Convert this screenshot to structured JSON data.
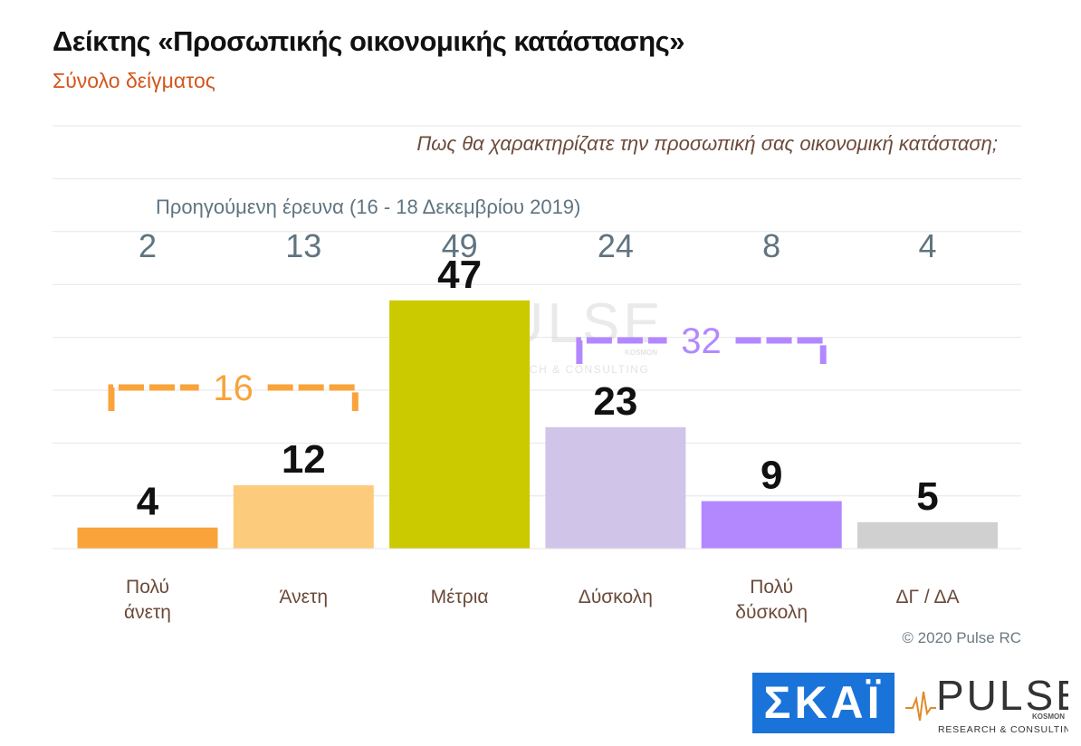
{
  "header": {
    "title": "Δείκτης «Προσωπικής οικονομικής κατάστασης»",
    "subtitle": "Σύνολο δείγματος",
    "question": "Πως θα χαρακτηρίζατε την προσωπική σας οικονομική κατάσταση;"
  },
  "previous_survey": {
    "label": "Προηγούμενη έρευνα  (16 - 18 Δεκεμβρίου  2019)",
    "values": [
      "2",
      "13",
      "49",
      "24",
      "8",
      "4"
    ]
  },
  "chart_data": {
    "type": "bar",
    "categories": [
      [
        "Πολύ",
        "άνετη"
      ],
      [
        "Άνετη"
      ],
      [
        "Μέτρια"
      ],
      [
        "Δύσκολη"
      ],
      [
        "Πολύ",
        "δύσκολη"
      ],
      [
        "ΔΓ / ΔΑ"
      ]
    ],
    "values": [
      4,
      12,
      47,
      23,
      9,
      5
    ],
    "data_labels": [
      "4",
      "12",
      "47",
      "23",
      "9",
      "5"
    ],
    "ylim": [
      0,
      60
    ],
    "grid": true,
    "bar_colors": [
      "#f9a33b",
      "#fdcb7c",
      "#cbc900",
      "#d1c4e9",
      "#b388ff",
      "#d0d0d0"
    ],
    "group_brackets": [
      {
        "label": "16",
        "categories": [
          0,
          1
        ],
        "color": "#f9a33b"
      },
      {
        "label": "32",
        "categories": [
          3,
          4
        ],
        "color": "#b388ff"
      }
    ]
  },
  "footer": {
    "copyright": "© 2020 Pulse RC",
    "logo_skai_text": "ΣΚΑΪ",
    "logo_pulse_text": "PULSE",
    "logo_pulse_sub": "RESEARCH & CONSULTING",
    "logo_pulse_tag": "KOSMON"
  },
  "watermark": {
    "text": "PULSE",
    "sub": "RESEARCH & CONSULTING",
    "tag": "KOSMON"
  },
  "colors": {
    "title": "#111111",
    "subtitle": "#d4561c",
    "question": "#6b4a3a",
    "previous": "#5f7480",
    "category_label": "#6b4a3a",
    "grid": "#e6e6e6",
    "skai_blue": "#1a73d9",
    "pulse_orange": "#e08a2a"
  }
}
